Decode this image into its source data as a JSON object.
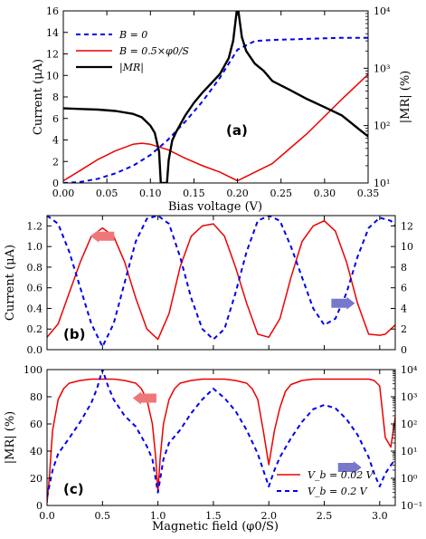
{
  "chart_data": [
    {
      "panel_label": "(a)",
      "type": "line",
      "xlabel": "Bias voltage (V)",
      "ylabel_left": "Current (μA)",
      "ylabel_right": "|MR| (%)",
      "xlim": [
        0.0,
        0.35
      ],
      "ylim_left": [
        0,
        16
      ],
      "ylim_right_log": [
        10,
        10000
      ],
      "x_ticks": [
        "0.00",
        "0.05",
        "0.10",
        "0.15",
        "0.20",
        "0.25",
        "0.30",
        "0.35"
      ],
      "y_ticks_left": [
        "0",
        "2",
        "4",
        "6",
        "8",
        "10",
        "12",
        "14",
        "16"
      ],
      "y_ticks_right": [
        "10¹",
        "10²",
        "10³",
        "10⁴"
      ],
      "series": [
        {
          "name": "B = 0",
          "color": "#0000ee",
          "dash": "dashed",
          "axis": "left",
          "x": [
            0,
            0.02,
            0.04,
            0.06,
            0.08,
            0.1,
            0.12,
            0.14,
            0.16,
            0.18,
            0.2,
            0.22,
            0.24,
            0.26,
            0.28,
            0.3,
            0.32,
            0.35
          ],
          "y": [
            0,
            0.1,
            0.4,
            0.9,
            1.6,
            2.6,
            4.0,
            5.7,
            7.6,
            9.8,
            12.4,
            13.2,
            13.3,
            13.35,
            13.4,
            13.45,
            13.5,
            13.5
          ]
        },
        {
          "name": "B = 0.5×φ0/S",
          "color": "#ee0000",
          "dash": "solid",
          "axis": "left",
          "x": [
            0,
            0.02,
            0.04,
            0.06,
            0.08,
            0.09,
            0.1,
            0.12,
            0.14,
            0.16,
            0.18,
            0.2,
            0.22,
            0.24,
            0.26,
            0.28,
            0.3,
            0.32,
            0.35
          ],
          "y": [
            0.2,
            1.2,
            2.2,
            3.0,
            3.6,
            3.7,
            3.6,
            3.1,
            2.3,
            1.6,
            1.0,
            0.2,
            1.0,
            1.8,
            3.2,
            4.6,
            6.2,
            7.8,
            10.1
          ]
        },
        {
          "name": "|MR|",
          "color": "#000000",
          "dash": "solid",
          "axis": "right",
          "x": [
            0,
            0.02,
            0.04,
            0.06,
            0.08,
            0.09,
            0.1,
            0.105,
            0.11,
            0.112,
            0.116,
            0.119,
            0.121,
            0.125,
            0.13,
            0.14,
            0.15,
            0.16,
            0.17,
            0.18,
            0.19,
            0.195,
            0.2,
            0.205,
            0.21,
            0.22,
            0.23,
            0.24,
            0.26,
            0.28,
            0.3,
            0.32,
            0.34,
            0.35
          ],
          "y": [
            200,
            195,
            190,
            180,
            160,
            140,
            100,
            75,
            35,
            10,
            10,
            10,
            25,
            55,
            80,
            150,
            250,
            380,
            550,
            800,
            1500,
            3000,
            13000,
            3500,
            2000,
            1200,
            900,
            600,
            420,
            290,
            210,
            150,
            85,
            65
          ]
        }
      ],
      "legend": [
        "B = 0",
        "B = 0.5×φ0/S",
        "|MR|"
      ],
      "legend_position": "top-left",
      "grid": false
    },
    {
      "panel_label": "(b)",
      "type": "line",
      "ylabel_left": "Current (μA)",
      "xlim": [
        0,
        3.14
      ],
      "ylim_left": [
        0,
        1.3
      ],
      "ylim_right": [
        0,
        13
      ],
      "y_ticks_left": [
        "0.0",
        "0.2",
        "0.4",
        "0.6",
        "0.8",
        "1.0",
        "1.2"
      ],
      "y_ticks_right": [
        "0",
        "2",
        "4",
        "6",
        "8",
        "10",
        "12"
      ],
      "arrows": [
        {
          "direction": "left",
          "color": "#ee7777",
          "axis": "left",
          "x": 0.5,
          "y": 1.1
        },
        {
          "direction": "right",
          "color": "#7777cc",
          "axis": "left",
          "x": 2.67,
          "y": 0.45
        }
      ],
      "series": [
        {
          "name": "",
          "color": "#ee0000",
          "dash": "solid",
          "axis": "left",
          "x": [
            0.0,
            0.1,
            0.2,
            0.3,
            0.4,
            0.5,
            0.6,
            0.7,
            0.8,
            0.9,
            1.0,
            1.1,
            1.2,
            1.3,
            1.4,
            1.5,
            1.6,
            1.7,
            1.8,
            1.9,
            2.0,
            2.1,
            2.2,
            2.3,
            2.4,
            2.5,
            2.6,
            2.7,
            2.8,
            2.9,
            3.0,
            3.05,
            3.1,
            3.14
          ],
          "y": [
            0.12,
            0.25,
            0.55,
            0.85,
            1.1,
            1.18,
            1.1,
            0.85,
            0.5,
            0.2,
            0.1,
            0.35,
            0.8,
            1.1,
            1.2,
            1.22,
            1.1,
            0.8,
            0.45,
            0.15,
            0.12,
            0.3,
            0.7,
            1.05,
            1.2,
            1.25,
            1.15,
            0.85,
            0.45,
            0.15,
            0.14,
            0.15,
            0.2,
            0.24
          ]
        },
        {
          "name": "",
          "color": "#0000ee",
          "dash": "dashed",
          "axis": "right",
          "x": [
            0.0,
            0.1,
            0.2,
            0.3,
            0.4,
            0.5,
            0.6,
            0.7,
            0.8,
            0.9,
            1.0,
            1.1,
            1.2,
            1.3,
            1.4,
            1.5,
            1.6,
            1.7,
            1.8,
            1.9,
            2.0,
            2.1,
            2.2,
            2.3,
            2.4,
            2.5,
            2.6,
            2.7,
            2.8,
            2.9,
            3.0,
            3.1,
            3.14
          ],
          "y": [
            13.0,
            12.2,
            9.5,
            6.0,
            2.5,
            0.3,
            2.5,
            6.5,
            10.5,
            12.7,
            13.0,
            12.2,
            9.0,
            5.0,
            2.0,
            1.0,
            2.0,
            5.5,
            9.5,
            12.5,
            13.0,
            12.5,
            10.0,
            7.0,
            4.0,
            2.4,
            3.0,
            5.5,
            9.0,
            11.8,
            12.8,
            12.5,
            12.0
          ]
        }
      ],
      "grid": false
    },
    {
      "panel_label": "(c)",
      "type": "line",
      "xlabel": "Magnetic field (φ0/S)",
      "ylabel_left": "|MR| (%)",
      "xlim": [
        0,
        3.14
      ],
      "ylim_left": [
        0,
        100
      ],
      "ylim_right_log": [
        0.1,
        10000
      ],
      "x_ticks": [
        "0.0",
        "0.5",
        "1.0",
        "1.5",
        "2.0",
        "2.5",
        "3.0"
      ],
      "y_ticks_left": [
        "0",
        "20",
        "40",
        "60",
        "80",
        "100"
      ],
      "y_ticks_right": [
        "10⁻¹",
        "10⁰",
        "10¹",
        "10²",
        "10³",
        "10⁴"
      ],
      "arrows": [
        {
          "direction": "left",
          "color": "#ee7777",
          "axis": "left",
          "x": 0.88,
          "y": 79
        },
        {
          "direction": "right",
          "color": "#7777cc",
          "axis": "left",
          "x": 2.73,
          "y": 28
        }
      ],
      "series": [
        {
          "name": "V_b = 0.02 V",
          "color": "#ee0000",
          "dash": "solid",
          "axis": "left",
          "x": [
            0.0,
            0.02,
            0.05,
            0.1,
            0.15,
            0.2,
            0.3,
            0.4,
            0.5,
            0.6,
            0.7,
            0.8,
            0.85,
            0.9,
            0.95,
            0.98,
            1.0,
            1.02,
            1.05,
            1.1,
            1.15,
            1.2,
            1.3,
            1.4,
            1.5,
            1.6,
            1.7,
            1.8,
            1.85,
            1.9,
            1.95,
            2.0,
            2.05,
            2.1,
            2.15,
            2.2,
            2.3,
            2.4,
            2.5,
            2.6,
            2.7,
            2.8,
            2.9,
            2.95,
            3.0,
            3.05,
            3.1,
            3.14
          ],
          "y": [
            2,
            20,
            55,
            78,
            86,
            90,
            92,
            93,
            93,
            93,
            92,
            90,
            86,
            78,
            60,
            35,
            10,
            35,
            60,
            78,
            86,
            90,
            92,
            93,
            93,
            93,
            92,
            90,
            86,
            78,
            55,
            30,
            55,
            72,
            84,
            89,
            92,
            93,
            93,
            93,
            93,
            93,
            93,
            92,
            88,
            50,
            43,
            65
          ]
        },
        {
          "name": "V_b = 0.2 V",
          "color": "#0000ee",
          "dash": "dashed",
          "axis": "right",
          "x": [
            0.0,
            0.05,
            0.1,
            0.2,
            0.3,
            0.4,
            0.45,
            0.5,
            0.55,
            0.6,
            0.7,
            0.8,
            0.9,
            0.95,
            1.0,
            1.05,
            1.1,
            1.2,
            1.3,
            1.4,
            1.5,
            1.6,
            1.7,
            1.8,
            1.9,
            1.95,
            2.0,
            2.05,
            2.1,
            2.2,
            2.3,
            2.4,
            2.5,
            2.6,
            2.7,
            2.8,
            2.9,
            2.95,
            3.0,
            3.05,
            3.1,
            3.14
          ],
          "y": [
            0.2,
            2,
            8,
            30,
            120,
            600,
            2000,
            10000,
            2500,
            800,
            200,
            80,
            15,
            5,
            0.3,
            5,
            20,
            60,
            250,
            800,
            2000,
            900,
            300,
            60,
            8,
            2,
            0.5,
            2,
            6,
            30,
            120,
            350,
            500,
            380,
            150,
            40,
            6,
            1.5,
            0.5,
            1.5,
            3,
            5
          ]
        }
      ],
      "legend": [
        "V_b = 0.02 V",
        "V_b = 0.2 V"
      ],
      "legend_position": "bottom-right",
      "grid": false
    }
  ]
}
